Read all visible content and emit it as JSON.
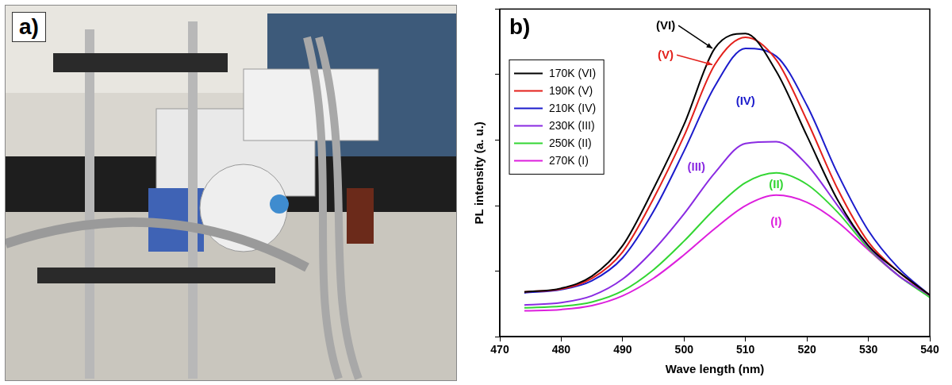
{
  "photo_panel": {
    "label": "a)"
  },
  "chart_data": {
    "type": "line",
    "panel_label": "b)",
    "x_label": "Wave length (nm)",
    "y_label": "PL intensity (a. u.)",
    "x": [
      474,
      480,
      485,
      490,
      495,
      500,
      505,
      510,
      515,
      520,
      525,
      530,
      535,
      540
    ],
    "xlim": [
      470,
      540
    ],
    "xticks": [
      470,
      480,
      490,
      500,
      510,
      520,
      530,
      540
    ],
    "ylim": [
      0,
      100
    ],
    "yticks": [
      0,
      20,
      40,
      60,
      80,
      100
    ],
    "tick_labels": "x",
    "grid": false,
    "legend": "upper left",
    "marker": "none",
    "line_style": "solid",
    "series": [
      {
        "name": "170K (VI)",
        "annotation": "(VI)",
        "color": "#000000",
        "values": [
          13.7,
          14.8,
          18.5,
          27.8,
          45.1,
          64.8,
          88.0,
          92.5,
          81.0,
          61.3,
          41.7,
          27.8,
          19.7,
          12.7
        ]
      },
      {
        "name": "190K (V)",
        "annotation": "(V)",
        "color": "#e3201b",
        "values": [
          13.7,
          14.6,
          17.8,
          25.9,
          42.1,
          61.3,
          83.0,
          91.4,
          84.5,
          66.0,
          45.1,
          28.9,
          19.7,
          12.7
        ]
      },
      {
        "name": "210K (IV)",
        "annotation": "(IV)",
        "color": "#1c1ccc",
        "values": [
          13.4,
          14.4,
          17.1,
          24.1,
          38.2,
          56.7,
          76.4,
          88.0,
          85.6,
          70.6,
          49.8,
          32.4,
          20.8,
          12.7
        ]
      },
      {
        "name": "230K (III)",
        "annotation": "(III)",
        "color": "#8a2be2",
        "values": [
          9.7,
          10.4,
          12.5,
          17.6,
          26.4,
          37.5,
          50.0,
          59.0,
          59.5,
          52.5,
          40.0,
          27.5,
          18.5,
          12.7
        ]
      },
      {
        "name": "250K (II)",
        "annotation": "(II)",
        "color": "#33d633",
        "values": [
          8.8,
          9.3,
          10.6,
          14.0,
          20.4,
          29.2,
          39.0,
          47.0,
          50.0,
          46.5,
          38.0,
          27.0,
          18.5,
          12.0
        ]
      },
      {
        "name": "270K (I)",
        "annotation": "(I)",
        "color": "#dd1fdd",
        "values": [
          7.9,
          8.3,
          9.5,
          12.5,
          17.8,
          25.0,
          33.0,
          40.0,
          43.2,
          41.0,
          35.0,
          26.5,
          18.5,
          12.5
        ]
      }
    ]
  }
}
